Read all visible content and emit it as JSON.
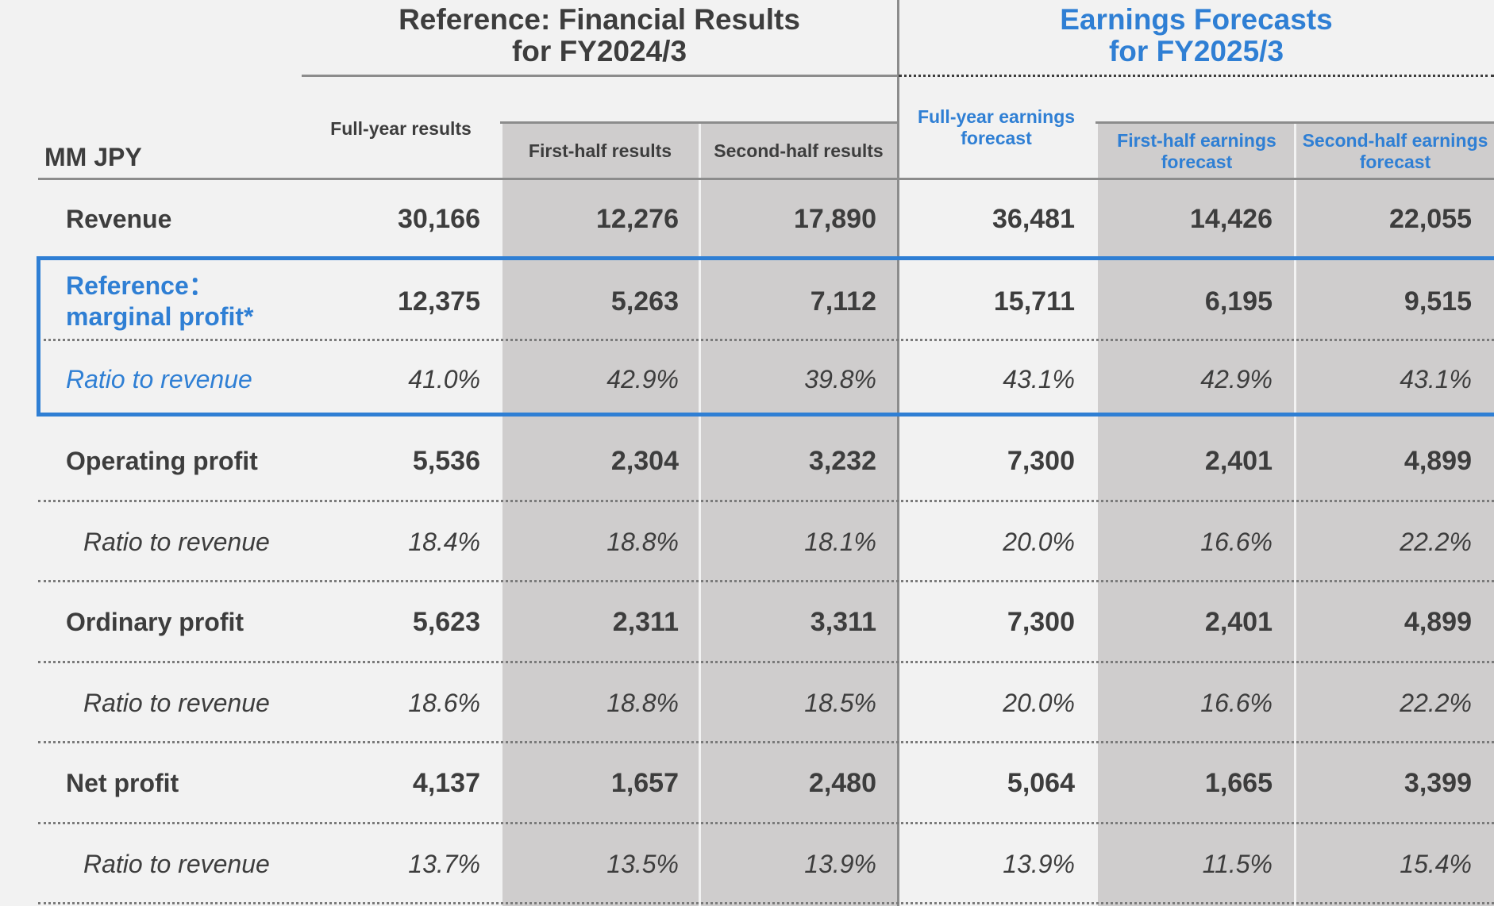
{
  "header": {
    "reference_title": "Reference: Financial Results",
    "reference_period": "for FY2024/3",
    "forecast_title": "Earnings Forecasts",
    "forecast_period": "for FY2025/3",
    "unit": "MM JPY"
  },
  "columns": {
    "fy_results": "Full-year results",
    "h1_results": "First-half results",
    "h2_results": "Second-half results",
    "fy_forecast": "Full-year earnings forecast",
    "h1_forecast": "First-half earnings forecast",
    "h2_forecast": "Second-half earnings forecast"
  },
  "rows": [
    {
      "label": "Revenue",
      "values": [
        "30,166",
        "12,276",
        "17,890",
        "36,481",
        "14,426",
        "22,055"
      ]
    },
    {
      "label": "Reference：marginal profit*",
      "values": [
        "12,375",
        "5,263",
        "7,112",
        "15,711",
        "6,195",
        "9,515"
      ]
    },
    {
      "label": "Ratio to revenue",
      "values": [
        "41.0%",
        "42.9%",
        "39.8%",
        "43.1%",
        "42.9%",
        "43.1%"
      ]
    },
    {
      "label": "Operating profit",
      "values": [
        "5,536",
        "2,304",
        "3,232",
        "7,300",
        "2,401",
        "4,899"
      ]
    },
    {
      "label": "Ratio to revenue",
      "values": [
        "18.4%",
        "18.8%",
        "18.1%",
        "20.0%",
        "16.6%",
        "22.2%"
      ]
    },
    {
      "label": "Ordinary profit",
      "values": [
        "5,623",
        "2,311",
        "3,311",
        "7,300",
        "2,401",
        "4,899"
      ]
    },
    {
      "label": "Ratio to revenue",
      "values": [
        "18.6%",
        "18.8%",
        "18.5%",
        "20.0%",
        "16.6%",
        "22.2%"
      ]
    },
    {
      "label": "Net profit",
      "values": [
        "4,137",
        "1,657",
        "2,480",
        "5,064",
        "1,665",
        "3,399"
      ]
    },
    {
      "label": "Ratio to revenue",
      "values": [
        "13.7%",
        "13.5%",
        "13.9%",
        "13.9%",
        "11.5%",
        "15.4%"
      ]
    }
  ],
  "marginal_label_parts": [
    "Reference：",
    "marginal profit*"
  ],
  "colors": {
    "accent_blue": "#2f7fd4",
    "gray_column": "#cfcdcd",
    "background": "#f2f2f2",
    "text": "#3d3d3d"
  }
}
